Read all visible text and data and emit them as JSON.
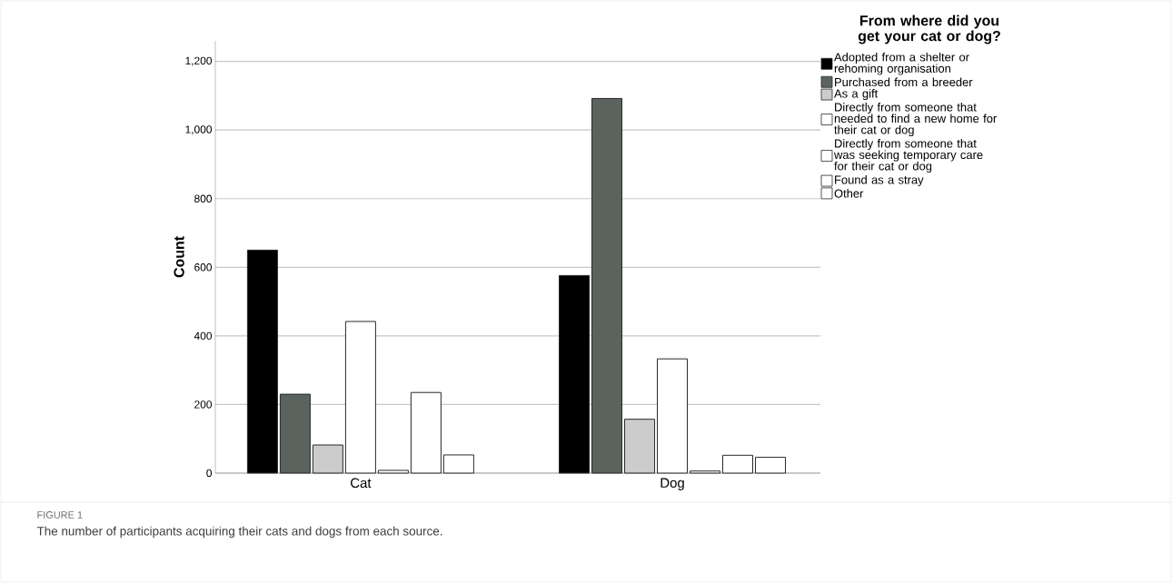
{
  "chart_data": {
    "type": "bar",
    "ylabel": "Count",
    "legend_title": "From where did you get your cat or dog?",
    "categories": [
      "Cat",
      "Dog"
    ],
    "series": [
      {
        "name": "Adopted from a shelter or rehoming organisation",
        "color": "#000000",
        "values": [
          650,
          576
        ]
      },
      {
        "name": "Purchased from a breeder",
        "color": "#5b635e",
        "values": [
          230,
          1092
        ]
      },
      {
        "name": "As a gift",
        "color": "#cccccc",
        "values": [
          82,
          157
        ]
      },
      {
        "name": "Directly from someone that needed to find a new home for their cat or dog",
        "color": "#ffffff",
        "values": [
          442,
          333
        ]
      },
      {
        "name": "Directly from someone that was seeking temporary care for their cat or dog",
        "color": "#ffffff",
        "values": [
          8,
          6
        ]
      },
      {
        "name": "Found as a stray",
        "color": "#ffffff",
        "values": [
          235,
          52
        ]
      },
      {
        "name": "Other",
        "color": "#ffffff",
        "values": [
          53,
          46
        ]
      }
    ],
    "ylim": [
      0,
      1260
    ],
    "yticks": [
      {
        "value": 0,
        "label": "0"
      },
      {
        "value": 200,
        "label": "200"
      },
      {
        "value": 400,
        "label": "400"
      },
      {
        "value": 600,
        "label": "600"
      },
      {
        "value": 800,
        "label": "800"
      },
      {
        "value": 1000,
        "label": "1,000"
      },
      {
        "value": 1200,
        "label": "1,200"
      }
    ],
    "grid": "y",
    "legend": "right",
    "annotations": [
      "FIGURE 1",
      "The number of participants acquiring their cats and dogs from each source."
    ]
  }
}
